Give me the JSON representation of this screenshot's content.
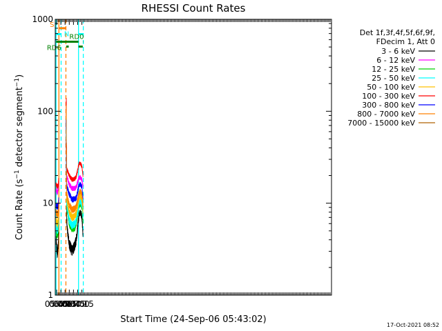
{
  "chart_data": {
    "type": "line",
    "title": "RHESSI Count Rates",
    "xlabel": "Start Time (24-Sep-06 05:43:02)",
    "ylabel": "Count Rate (s⁻¹ detector segment⁻¹)",
    "ylabel_parts": {
      "a": "Count Rate (s",
      "b": "−1",
      "c": " detector segment",
      "d": "−1",
      "e": ")"
    },
    "y_scale": "log",
    "ylim": [
      1,
      1000
    ],
    "y_ticks": [
      {
        "v": 1,
        "label": "1"
      },
      {
        "v": 10,
        "label": "10"
      },
      {
        "v": 100,
        "label": "100"
      },
      {
        "v": 1000,
        "label": "1000"
      }
    ],
    "xlim_minutes": [
      340,
      1325
    ],
    "x_ticks": [
      {
        "t": "05:45",
        "m": 345
      },
      {
        "t": "06:00",
        "m": 360
      },
      {
        "t": "06:15",
        "m": 375
      },
      {
        "t": "06:30",
        "m": 390
      },
      {
        "t": "06:45",
        "m": 405
      },
      {
        "t": "07:00",
        "m": 420
      },
      {
        "t": "07:15",
        "m": 435
      }
    ],
    "x_minor_every_min": 5,
    "grid": false,
    "legend_placement": "right",
    "legend_header": [
      "Det 1f,3f,4f,5f,6f,9f,",
      "FDecim 1, Att 0"
    ],
    "series": [
      {
        "name": "3 - 6 keV",
        "color": "#000000",
        "x": [
          "05:43",
          "05:47",
          "05:51",
          "05:52",
          "06:20",
          "06:25",
          "06:30",
          "06:40",
          "06:50",
          "06:55",
          "07:00",
          "07:05",
          "07:10",
          "07:15",
          "07:19"
        ],
        "values": [
          4.0,
          2.8,
          3.5,
          4.8,
          7.0,
          4.5,
          3.6,
          3.0,
          3.5,
          4.0,
          5.5,
          7.5,
          8.0,
          7.0,
          4.5
        ]
      },
      {
        "name": "6 - 12 keV",
        "color": "#ff00ff",
        "x": [
          "05:43",
          "05:47",
          "05:51",
          "05:52",
          "06:20",
          "06:25",
          "06:30",
          "06:40",
          "06:50",
          "06:55",
          "07:00",
          "07:05",
          "07:10",
          "07:15",
          "07:19"
        ],
        "values": [
          14.0,
          13.0,
          14.5,
          16.0,
          20.0,
          18.0,
          16.0,
          14.5,
          14.5,
          15.0,
          17.0,
          19.0,
          19.0,
          18.0,
          15.0
        ]
      },
      {
        "name": "12 - 25 keV",
        "color": "#00d000",
        "x": [
          "05:43",
          "05:47",
          "05:51",
          "05:52",
          "06:20",
          "06:25",
          "06:30",
          "06:40",
          "06:50",
          "06:55",
          "07:00",
          "07:05",
          "07:10",
          "07:15",
          "07:19"
        ],
        "values": [
          5.0,
          4.5,
          5.0,
          6.0,
          10.0,
          7.5,
          6.0,
          5.3,
          5.5,
          6.0,
          7.5,
          9.5,
          10.0,
          9.0,
          6.5
        ]
      },
      {
        "name": "25 - 50 keV",
        "color": "#00ffff",
        "x": [
          "05:43",
          "05:47",
          "05:51",
          "05:52",
          "06:20",
          "06:25",
          "06:30",
          "06:40",
          "06:50",
          "06:55",
          "07:00",
          "07:05",
          "07:10",
          "07:15",
          "07:19"
        ],
        "values": [
          5.5,
          5.0,
          5.5,
          6.5,
          10.0,
          8.0,
          6.5,
          5.7,
          6.0,
          6.5,
          8.0,
          10.0,
          10.5,
          9.5,
          7.0
        ]
      },
      {
        "name": "50 - 100 keV",
        "color": "#ffc000",
        "x": [
          "05:43",
          "05:47",
          "05:51",
          "05:52",
          "06:20",
          "06:25",
          "06:30",
          "06:40",
          "06:50",
          "06:55",
          "07:00",
          "07:05",
          "07:10",
          "07:15",
          "07:19"
        ],
        "values": [
          6.5,
          6.0,
          6.5,
          7.5,
          12.0,
          9.5,
          8.0,
          7.0,
          7.2,
          7.8,
          9.5,
          11.5,
          12.0,
          11.0,
          8.0
        ]
      },
      {
        "name": "100 - 300 keV",
        "color": "#ff0000",
        "x": [
          "05:43",
          "05:47",
          "05:51",
          "05:52",
          "06:20",
          "06:25",
          "06:30",
          "06:40",
          "06:50",
          "06:55",
          "07:00",
          "07:05",
          "07:10",
          "07:15",
          "07:19"
        ],
        "values": [
          16.0,
          15.0,
          16.0,
          18.0,
          24.0,
          22.0,
          20.0,
          18.0,
          18.5,
          19.5,
          23.0,
          27.0,
          27.0,
          25.0,
          20.0
        ]
      },
      {
        "name": "300 - 800 keV",
        "color": "#0000ff",
        "x": [
          "05:43",
          "05:47",
          "05:51",
          "05:52",
          "06:20",
          "06:25",
          "06:30",
          "06:40",
          "06:50",
          "06:55",
          "07:00",
          "07:05",
          "07:10",
          "07:15",
          "07:19"
        ],
        "values": [
          9.5,
          9.0,
          9.5,
          11.0,
          16.0,
          14.0,
          12.5,
          11.0,
          11.0,
          11.5,
          13.5,
          16.0,
          16.0,
          15.0,
          11.0
        ]
      },
      {
        "name": "800 - 7000 keV",
        "color": "#ff8000",
        "x": [
          "05:43",
          "05:47",
          "05:51",
          "05:52",
          "06:20",
          "06:25",
          "06:30",
          "06:40",
          "06:50",
          "06:55",
          "07:00",
          "07:05",
          "07:10",
          "07:15",
          "07:19"
        ],
        "values": [
          8.0,
          7.5,
          8.0,
          9.0,
          13.0,
          11.0,
          9.5,
          8.5,
          8.7,
          9.2,
          11.0,
          13.0,
          13.5,
          12.5,
          9.5
        ]
      },
      {
        "name": "7000 - 15000 keV",
        "color": "#b06000",
        "x": [],
        "values": []
      }
    ],
    "peak": {
      "at": "06:19",
      "values": {
        "3 - 6 keV": 60,
        "6 - 12 keV": 110,
        "12 - 25 keV": 95,
        "25 - 50 keV": 80,
        "50 - 100 keV": 130,
        "100 - 300 keV": 140,
        "300 - 800 keV": 90,
        "800 - 7000 keV": 120
      }
    },
    "orbit_bars": [
      {
        "label": "S",
        "color": "#ff8000",
        "start": "05:53",
        "end": "06:18",
        "level": 800
      },
      {
        "label": "N",
        "color": "#00ffff",
        "start": "05:43",
        "end": "06:01",
        "level": 690
      },
      {
        "label": "",
        "color": "#00ffff",
        "start": "07:03",
        "end": "07:20",
        "level": 690
      },
      {
        "label": "RD0",
        "color": "#008000",
        "start": "06:18",
        "end": "07:03",
        "level": 570
      },
      {
        "label": "",
        "color": "#008000",
        "start": "05:43",
        "end": "06:18",
        "level": 570
      },
      {
        "label": "",
        "color": "#008000",
        "start": "07:19",
        "end": "07:20",
        "level": 570
      },
      {
        "label": "RD6",
        "color": "#008000",
        "start": "06:19",
        "end": "06:28",
        "level": 505
      },
      {
        "label": "",
        "color": "#008000",
        "start": "07:03",
        "end": "07:18",
        "level": 505
      }
    ],
    "marker_lines": [
      {
        "at": "05:43",
        "color": "#00ffff",
        "style": "solid"
      },
      {
        "at": "05:53",
        "color": "#ff8000",
        "style": "solid"
      },
      {
        "at": "06:01",
        "color": "#00ffff",
        "style": "dashed"
      },
      {
        "at": "06:18",
        "color": "#ff8000",
        "style": "dashed"
      },
      {
        "at": "07:03",
        "color": "#00ffff",
        "style": "solid"
      },
      {
        "at": "07:20",
        "color": "#00ffff",
        "style": "dashed"
      }
    ]
  },
  "footer_timestamp": "17-Oct-2021 08:52"
}
